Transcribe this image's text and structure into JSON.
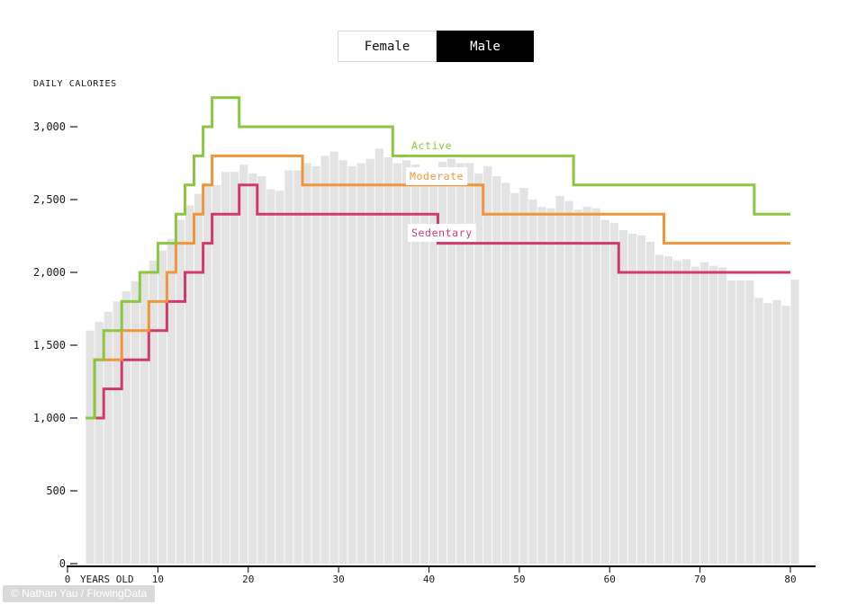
{
  "toggle": {
    "options": [
      {
        "label": "Female",
        "selected": false
      },
      {
        "label": "Male",
        "selected": true
      }
    ]
  },
  "footer": {
    "credit": "© Nathan Yau / FlowingData"
  },
  "chart_data": {
    "type": "line",
    "subtype": "step-lines-over-age-histogram",
    "title": "",
    "ylabel": "DAILY CALORIES",
    "x_unit_label": "YEARS OLD",
    "x_range": [
      0,
      81
    ],
    "y_range": [
      0,
      3300
    ],
    "grid": false,
    "x_ticks": [
      0,
      10,
      20,
      30,
      40,
      50,
      60,
      70,
      80
    ],
    "y_ticks": [
      {
        "value": 0,
        "label": "0"
      },
      {
        "value": 500,
        "label": "500"
      },
      {
        "value": 1000,
        "label": "1,000"
      },
      {
        "value": 1500,
        "label": "1,500"
      },
      {
        "value": 2000,
        "label": "2,000"
      },
      {
        "value": 2500,
        "label": "2,500"
      },
      {
        "value": 3000,
        "label": "3,000"
      }
    ],
    "histogram": {
      "name": "average-daily-calories-by-age",
      "color": "#e3e3e3",
      "start_age": 2,
      "values": [
        1600,
        1660,
        1730,
        1800,
        1870,
        1940,
        2010,
        2080,
        2150,
        2230,
        2360,
        2460,
        2540,
        2610,
        2600,
        2690,
        2690,
        2740,
        2680,
        2660,
        2570,
        2560,
        2700,
        2700,
        2750,
        2730,
        2800,
        2830,
        2770,
        2730,
        2750,
        2780,
        2850,
        2790,
        2750,
        2770,
        2740,
        2720,
        2680,
        2760,
        2780,
        2750,
        2750,
        2680,
        2730,
        2660,
        2615,
        2545,
        2580,
        2500,
        2450,
        2440,
        2525,
        2490,
        2430,
        2450,
        2440,
        2360,
        2340,
        2290,
        2265,
        2255,
        2210,
        2120,
        2110,
        2080,
        2090,
        2040,
        2070,
        2045,
        2035,
        1945,
        1945,
        1945,
        1825,
        1790,
        1810,
        1770,
        1950
      ]
    },
    "series": [
      {
        "name": "Sedentary",
        "color": "#d23a6b",
        "label": {
          "text": "Sedentary",
          "x": 457,
          "y": 263
        },
        "end_age": 80,
        "steps": [
          [
            2,
            1000
          ],
          [
            4,
            1200
          ],
          [
            6,
            1400
          ],
          [
            9,
            1600
          ],
          [
            11,
            1800
          ],
          [
            13,
            2000
          ],
          [
            15,
            2200
          ],
          [
            16,
            2400
          ],
          [
            19,
            2600
          ],
          [
            21,
            2400
          ],
          [
            41,
            2200
          ],
          [
            61,
            2000
          ]
        ]
      },
      {
        "name": "Moderate",
        "color": "#f09539",
        "label": {
          "text": "Moderate",
          "x": 455,
          "y": 200
        },
        "end_age": 80,
        "steps": [
          [
            2,
            1000
          ],
          [
            3,
            1400
          ],
          [
            6,
            1600
          ],
          [
            9,
            1800
          ],
          [
            11,
            2000
          ],
          [
            12,
            2200
          ],
          [
            14,
            2400
          ],
          [
            15,
            2600
          ],
          [
            16,
            2800
          ],
          [
            26,
            2600
          ],
          [
            46,
            2400
          ],
          [
            66,
            2200
          ]
        ]
      },
      {
        "name": "Active",
        "color": "#8dc63f",
        "label": {
          "text": "Active",
          "x": 457,
          "y": 166
        },
        "end_age": 80,
        "steps": [
          [
            2,
            1000
          ],
          [
            3,
            1400
          ],
          [
            4,
            1600
          ],
          [
            6,
            1800
          ],
          [
            8,
            2000
          ],
          [
            10,
            2200
          ],
          [
            12,
            2400
          ],
          [
            13,
            2600
          ],
          [
            14,
            2800
          ],
          [
            15,
            3000
          ],
          [
            16,
            3200
          ],
          [
            19,
            3000
          ],
          [
            36,
            2800
          ],
          [
            56,
            2600
          ],
          [
            76,
            2400
          ]
        ]
      }
    ],
    "axis_colors": {
      "axis_line": "#000000",
      "tick_text": "#1a1a1a",
      "tick_mark": "#444444"
    }
  }
}
